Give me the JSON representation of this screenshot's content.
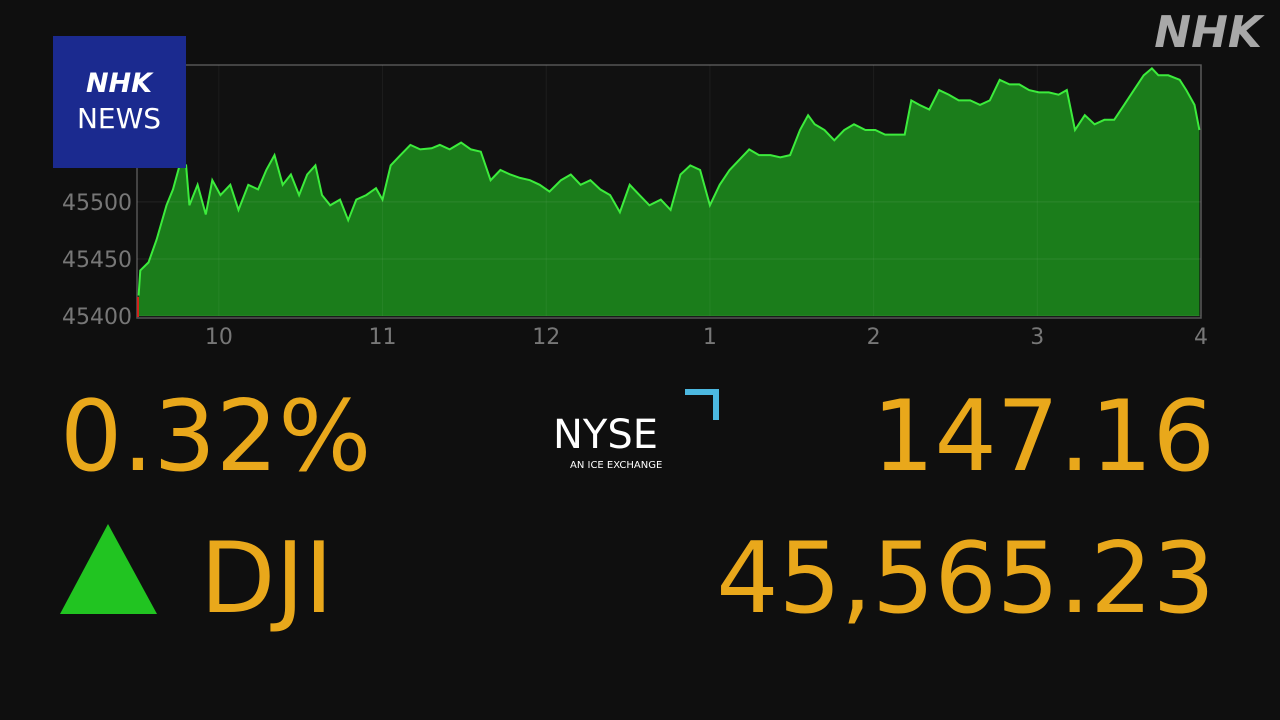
{
  "logo": {
    "brand": "NHK",
    "program": "NEWS"
  },
  "watermark": "NHK",
  "chart_data": {
    "type": "area",
    "x": [
      9.51,
      9.52,
      9.57,
      9.62,
      9.68,
      9.72,
      9.76,
      9.8,
      9.82,
      9.87,
      9.92,
      9.96,
      10.01,
      10.07,
      10.12,
      10.18,
      10.24,
      10.29,
      10.34,
      10.39,
      10.44,
      10.49,
      10.54,
      10.59,
      10.63,
      10.68,
      10.74,
      10.79,
      10.84,
      10.9,
      10.96,
      11.0,
      11.05,
      11.11,
      11.17,
      11.23,
      11.3,
      11.35,
      11.41,
      11.48,
      11.54,
      11.6,
      11.66,
      11.72,
      11.78,
      11.84,
      11.9,
      11.96,
      12.02,
      12.09,
      12.15,
      12.21,
      12.27,
      12.33,
      12.39,
      12.45,
      12.51,
      12.57,
      12.63,
      12.7,
      12.76,
      12.82,
      12.88,
      12.94,
      13.0,
      13.06,
      13.12,
      13.18,
      13.24,
      13.3,
      13.37,
      13.43,
      13.49,
      13.55,
      13.6,
      13.64,
      13.7,
      13.76,
      13.82,
      13.88,
      13.95,
      14.01,
      14.07,
      14.13,
      14.19,
      14.23,
      14.28,
      14.34,
      14.4,
      14.46,
      14.52,
      14.59,
      14.65,
      14.71,
      14.77,
      14.83,
      14.89,
      14.95,
      15.01,
      15.07,
      15.13,
      15.18,
      15.23,
      15.29,
      15.35,
      15.41,
      15.47,
      15.53,
      15.59,
      15.65,
      15.7,
      15.74,
      15.8,
      15.87,
      15.91,
      15.96,
      15.99
    ],
    "values": [
      45418,
      45440,
      45447,
      45467,
      45497,
      45511,
      45532,
      45532,
      45497,
      45515,
      45489,
      45519,
      45506,
      45515,
      45493,
      45515,
      45511,
      45528,
      45541,
      45515,
      45524,
      45506,
      45524,
      45532,
      45506,
      45497,
      45502,
      45484,
      45502,
      45506,
      45512,
      45502,
      45532,
      45541,
      45550,
      45546,
      45547,
      45550,
      45546,
      45552,
      45546,
      45544,
      45519,
      45528,
      45524,
      45521,
      45519,
      45515,
      45509,
      45519,
      45524,
      45515,
      45519,
      45511,
      45506,
      45491,
      45515,
      45506,
      45497,
      45502,
      45493,
      45524,
      45532,
      45528,
      45497,
      45515,
      45528,
      45537,
      45546,
      45541,
      45541,
      45539,
      45541,
      45563,
      45576,
      45568,
      45563,
      45554,
      45563,
      45568,
      45563,
      45563,
      45559,
      45559,
      45559,
      45589,
      45585,
      45581,
      45598,
      45594,
      45589,
      45589,
      45585,
      45589,
      45607,
      45603,
      45603,
      45598,
      45596,
      45596,
      45594,
      45598,
      45563,
      45576,
      45568,
      45572,
      45572,
      45585,
      45598,
      45611,
      45617,
      45611,
      45611,
      45607,
      45598,
      45585,
      45563
    ],
    "color": "#3cec3c",
    "fill_color": "#1b7d1b",
    "xlim": [
      9.5,
      16
    ],
    "xticks": [
      10,
      11,
      12,
      {
        "value": 13,
        "label": "1"
      },
      {
        "value": 14,
        "label": "2"
      },
      {
        "value": 15,
        "label": "3"
      },
      {
        "value": 16,
        "label": "4"
      }
    ],
    "ylim": [
      45400,
      45620
    ],
    "yticks": [
      45400,
      45450,
      45500
    ],
    "grid": true
  },
  "ticker": {
    "change_percent": "0.32%",
    "exchange": "NYSE",
    "exchange_tagline": "AN ICE EXCHANGE",
    "change_points": "147.16",
    "symbol": "DJI",
    "price": "45,565.23"
  }
}
